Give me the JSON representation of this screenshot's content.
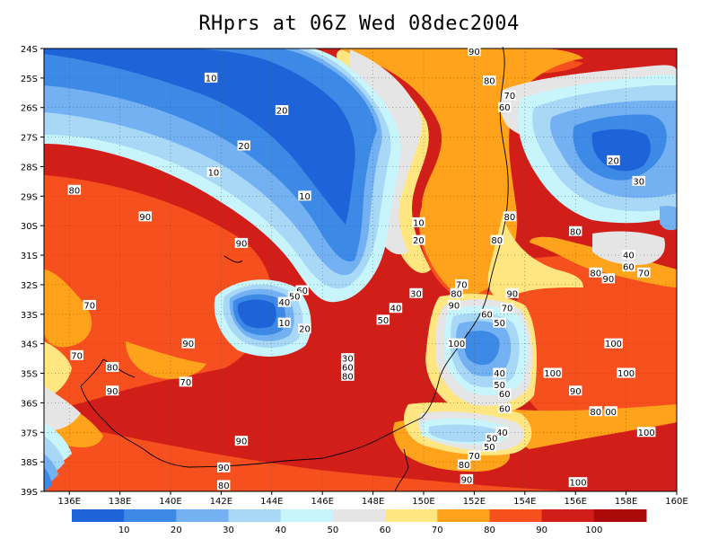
{
  "title": "RHprs at 06Z Wed 08dec2004",
  "map": {
    "lat_labels": [
      "24S",
      "25S",
      "26S",
      "27S",
      "28S",
      "29S",
      "30S",
      "31S",
      "32S",
      "33S",
      "34S",
      "35S",
      "36S",
      "37S",
      "38S",
      "39S"
    ],
    "lon_labels": [
      "136E",
      "138E",
      "140E",
      "142E",
      "144E",
      "146E",
      "148E",
      "150E",
      "152E",
      "154E",
      "156E",
      "158E",
      "160E"
    ],
    "grid": "dotted",
    "contour_labels": [
      {
        "text": "90",
        "lon": 152.0,
        "lat": 24.1
      },
      {
        "text": "10",
        "lon": 141.6,
        "lat": 25.0
      },
      {
        "text": "80",
        "lon": 152.6,
        "lat": 25.1
      },
      {
        "text": "70",
        "lon": 153.4,
        "lat": 25.6
      },
      {
        "text": "20",
        "lon": 144.4,
        "lat": 26.1
      },
      {
        "text": "60",
        "lon": 153.2,
        "lat": 26.0
      },
      {
        "text": "20",
        "lon": 142.9,
        "lat": 27.3
      },
      {
        "text": "20",
        "lon": 157.5,
        "lat": 27.8
      },
      {
        "text": "10",
        "lon": 141.7,
        "lat": 28.2
      },
      {
        "text": "30",
        "lon": 158.5,
        "lat": 28.5
      },
      {
        "text": "80",
        "lon": 136.2,
        "lat": 28.8
      },
      {
        "text": "10",
        "lon": 145.3,
        "lat": 29.0
      },
      {
        "text": "90",
        "lon": 139.0,
        "lat": 29.7
      },
      {
        "text": "80",
        "lon": 153.4,
        "lat": 29.7
      },
      {
        "text": "10",
        "lon": 149.8,
        "lat": 29.9
      },
      {
        "text": "80",
        "lon": 156.0,
        "lat": 30.2
      },
      {
        "text": "20",
        "lon": 149.8,
        "lat": 30.5
      },
      {
        "text": "80",
        "lon": 152.9,
        "lat": 30.5
      },
      {
        "text": "90",
        "lon": 142.8,
        "lat": 30.6
      },
      {
        "text": "40",
        "lon": 158.1,
        "lat": 31.0
      },
      {
        "text": "60",
        "lon": 158.1,
        "lat": 31.4
      },
      {
        "text": "70",
        "lon": 158.7,
        "lat": 31.6
      },
      {
        "text": "80",
        "lon": 156.8,
        "lat": 31.6
      },
      {
        "text": "90",
        "lon": 157.3,
        "lat": 31.8
      },
      {
        "text": "70",
        "lon": 151.5,
        "lat": 32.0
      },
      {
        "text": "60",
        "lon": 145.2,
        "lat": 32.2
      },
      {
        "text": "30",
        "lon": 149.7,
        "lat": 32.3
      },
      {
        "text": "80",
        "lon": 151.3,
        "lat": 32.3
      },
      {
        "text": "90",
        "lon": 153.5,
        "lat": 32.3
      },
      {
        "text": "50",
        "lon": 144.9,
        "lat": 32.4
      },
      {
        "text": "40",
        "lon": 144.5,
        "lat": 32.6
      },
      {
        "text": "90",
        "lon": 151.2,
        "lat": 32.7
      },
      {
        "text": "70",
        "lon": 136.8,
        "lat": 32.7
      },
      {
        "text": "40",
        "lon": 148.9,
        "lat": 32.8
      },
      {
        "text": "70",
        "lon": 153.3,
        "lat": 32.8
      },
      {
        "text": "60",
        "lon": 152.5,
        "lat": 33.0
      },
      {
        "text": "50",
        "lon": 148.4,
        "lat": 33.2
      },
      {
        "text": "50",
        "lon": 153.0,
        "lat": 33.3
      },
      {
        "text": "10",
        "lon": 144.5,
        "lat": 33.3
      },
      {
        "text": "20",
        "lon": 145.3,
        "lat": 33.5
      },
      {
        "text": "100",
        "lon": 151.3,
        "lat": 34.0
      },
      {
        "text": "100",
        "lon": 157.5,
        "lat": 34.0
      },
      {
        "text": "90",
        "lon": 140.7,
        "lat": 34.0
      },
      {
        "text": "70",
        "lon": 136.3,
        "lat": 34.4
      },
      {
        "text": "30",
        "lon": 147.0,
        "lat": 34.5
      },
      {
        "text": "80",
        "lon": 137.7,
        "lat": 34.8
      },
      {
        "text": "60",
        "lon": 147.0,
        "lat": 34.8
      },
      {
        "text": "40",
        "lon": 153.0,
        "lat": 35.0
      },
      {
        "text": "100",
        "lon": 155.1,
        "lat": 35.0
      },
      {
        "text": "100",
        "lon": 158.0,
        "lat": 35.0
      },
      {
        "text": "80",
        "lon": 147.0,
        "lat": 35.1
      },
      {
        "text": "70",
        "lon": 140.6,
        "lat": 35.3
      },
      {
        "text": "50",
        "lon": 153.0,
        "lat": 35.4
      },
      {
        "text": "90",
        "lon": 156.0,
        "lat": 35.6
      },
      {
        "text": "90",
        "lon": 137.7,
        "lat": 35.6
      },
      {
        "text": "60",
        "lon": 153.2,
        "lat": 35.7
      },
      {
        "text": "60",
        "lon": 153.2,
        "lat": 36.2
      },
      {
        "text": "80",
        "lon": 156.8,
        "lat": 36.3
      },
      {
        "text": "00",
        "lon": 157.4,
        "lat": 36.3
      },
      {
        "text": "40",
        "lon": 153.1,
        "lat": 37.0
      },
      {
        "text": "100",
        "lon": 158.8,
        "lat": 37.0
      },
      {
        "text": "50",
        "lon": 152.7,
        "lat": 37.2
      },
      {
        "text": "90",
        "lon": 142.8,
        "lat": 37.3
      },
      {
        "text": "50",
        "lon": 152.6,
        "lat": 37.5
      },
      {
        "text": "70",
        "lon": 152.0,
        "lat": 37.8
      },
      {
        "text": "80",
        "lon": 151.6,
        "lat": 38.1
      },
      {
        "text": "90",
        "lon": 142.1,
        "lat": 38.2
      },
      {
        "text": "90",
        "lon": 151.7,
        "lat": 38.6
      },
      {
        "text": "100",
        "lon": 156.1,
        "lat": 38.7
      },
      {
        "text": "80",
        "lon": 142.1,
        "lat": 38.8
      }
    ]
  },
  "colorbar": {
    "colors": [
      "#1e63d7",
      "#3c8ae6",
      "#74b1f2",
      "#a9d8f7",
      "#c8f4fb",
      "#e5e5e5",
      "#ffe680",
      "#ffa31c",
      "#f5501e",
      "#d21e18",
      "#aa0a0a"
    ],
    "labels": [
      "10",
      "20",
      "30",
      "40",
      "50",
      "60",
      "70",
      "80",
      "90",
      "100"
    ]
  }
}
